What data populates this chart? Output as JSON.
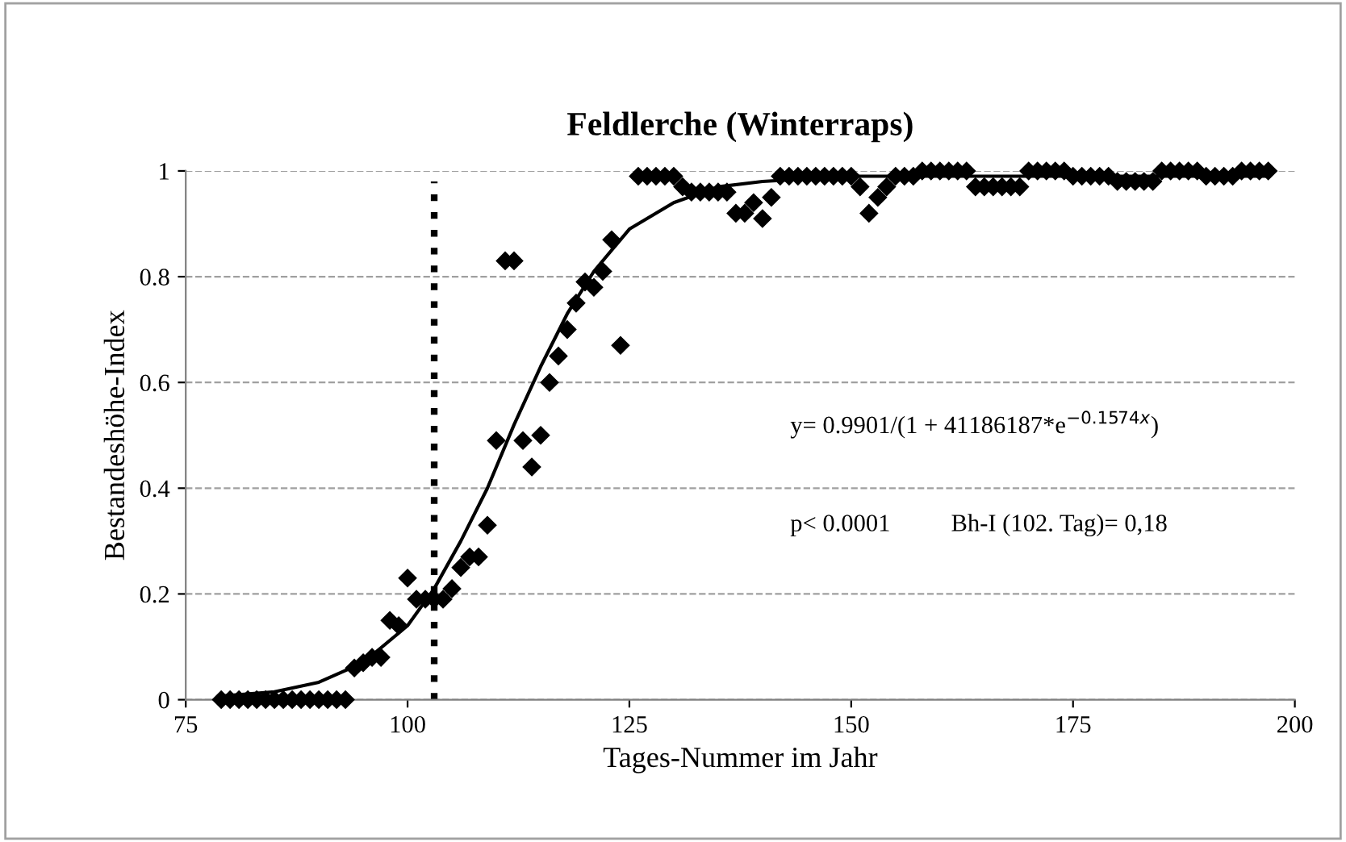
{
  "chart_data": {
    "type": "scatter",
    "title": "Feldlerche (Winterraps)",
    "xlabel": "Tages-Nummer im Jahr",
    "ylabel": "Bestandeshöhe-Index",
    "xlim": [
      75,
      200
    ],
    "xticks": [
      75,
      100,
      125,
      150,
      175,
      200
    ],
    "ylim": [
      0,
      1
    ],
    "yticks": [
      0,
      0.2,
      0.4,
      0.6,
      0.8,
      1
    ],
    "grid": "y",
    "marker": "diamond",
    "series": [
      {
        "color": "#000000",
        "x": [
          79,
          80,
          81,
          82,
          83,
          84,
          85,
          86,
          87,
          88,
          89,
          90,
          91,
          92,
          93,
          94,
          95,
          96,
          97,
          98,
          99,
          100,
          101,
          102,
          103,
          104,
          105,
          106,
          107,
          108,
          109,
          110,
          111,
          112,
          113,
          114,
          115,
          116,
          117,
          118,
          119,
          120,
          121,
          122,
          123,
          124,
          126,
          127,
          128,
          129,
          130,
          131,
          132,
          133,
          134,
          135,
          136,
          137,
          138,
          139,
          140,
          141,
          142,
          143,
          144,
          145,
          146,
          147,
          148,
          149,
          150,
          151,
          152,
          153,
          154,
          155,
          156,
          157,
          158,
          159,
          160,
          161,
          162,
          163,
          164,
          165,
          166,
          167,
          168,
          169,
          170,
          171,
          172,
          173,
          174,
          175,
          176,
          177,
          178,
          179,
          180,
          181,
          182,
          183,
          184,
          185,
          186,
          187,
          188,
          189,
          190,
          191,
          192,
          193,
          194,
          195,
          196,
          197
        ],
        "values": [
          0,
          0,
          0,
          0,
          0,
          0,
          0,
          0,
          0,
          0,
          0,
          0,
          0,
          0,
          0,
          0.06,
          0.07,
          0.08,
          0.08,
          0.15,
          0.14,
          0.23,
          0.19,
          0.19,
          0.19,
          0.19,
          0.21,
          0.25,
          0.27,
          0.27,
          0.33,
          0.49,
          0.83,
          0.83,
          0.49,
          0.44,
          0.5,
          0.6,
          0.65,
          0.7,
          0.75,
          0.79,
          0.78,
          0.81,
          0.87,
          0.67,
          0.99,
          0.99,
          0.99,
          0.99,
          0.99,
          0.97,
          0.96,
          0.96,
          0.96,
          0.96,
          0.96,
          0.92,
          0.92,
          0.94,
          0.91,
          0.95,
          0.99,
          0.99,
          0.99,
          0.99,
          0.99,
          0.99,
          0.99,
          0.99,
          0.99,
          0.97,
          0.92,
          0.95,
          0.97,
          0.99,
          0.99,
          0.99,
          1,
          1,
          1,
          1,
          1,
          1,
          0.97,
          0.97,
          0.97,
          0.97,
          0.97,
          0.97,
          1,
          1,
          1,
          1,
          1,
          0.99,
          0.99,
          0.99,
          0.99,
          0.99,
          0.98,
          0.98,
          0.98,
          0.98,
          0.98,
          1,
          1,
          1,
          1,
          1,
          0.99,
          0.99,
          0.99,
          0.99,
          1,
          1,
          1,
          1
        ]
      },
      {
        "type": "line",
        "color": "#000000",
        "marker": "none",
        "x": [
          79,
          85,
          90,
          95,
          100,
          103,
          106,
          109,
          112,
          115,
          118,
          121,
          125,
          130,
          135,
          140,
          150,
          175,
          197
        ],
        "values": [
          0.007,
          0.015,
          0.033,
          0.07,
          0.14,
          0.21,
          0.3,
          0.4,
          0.52,
          0.63,
          0.73,
          0.81,
          0.89,
          0.94,
          0.97,
          0.98,
          0.99,
          0.99,
          0.99
        ]
      }
    ],
    "ref_lines": [
      {
        "axis": "x",
        "value": 103,
        "color": "#000000",
        "line_style": "dotted"
      }
    ],
    "annotations": [
      "y= 0.9901/(1 + 41186187*e$^{−0.1574x}$)",
      "p< 0.0001",
      "Bh-I (102. Tag)= 0,18"
    ]
  }
}
